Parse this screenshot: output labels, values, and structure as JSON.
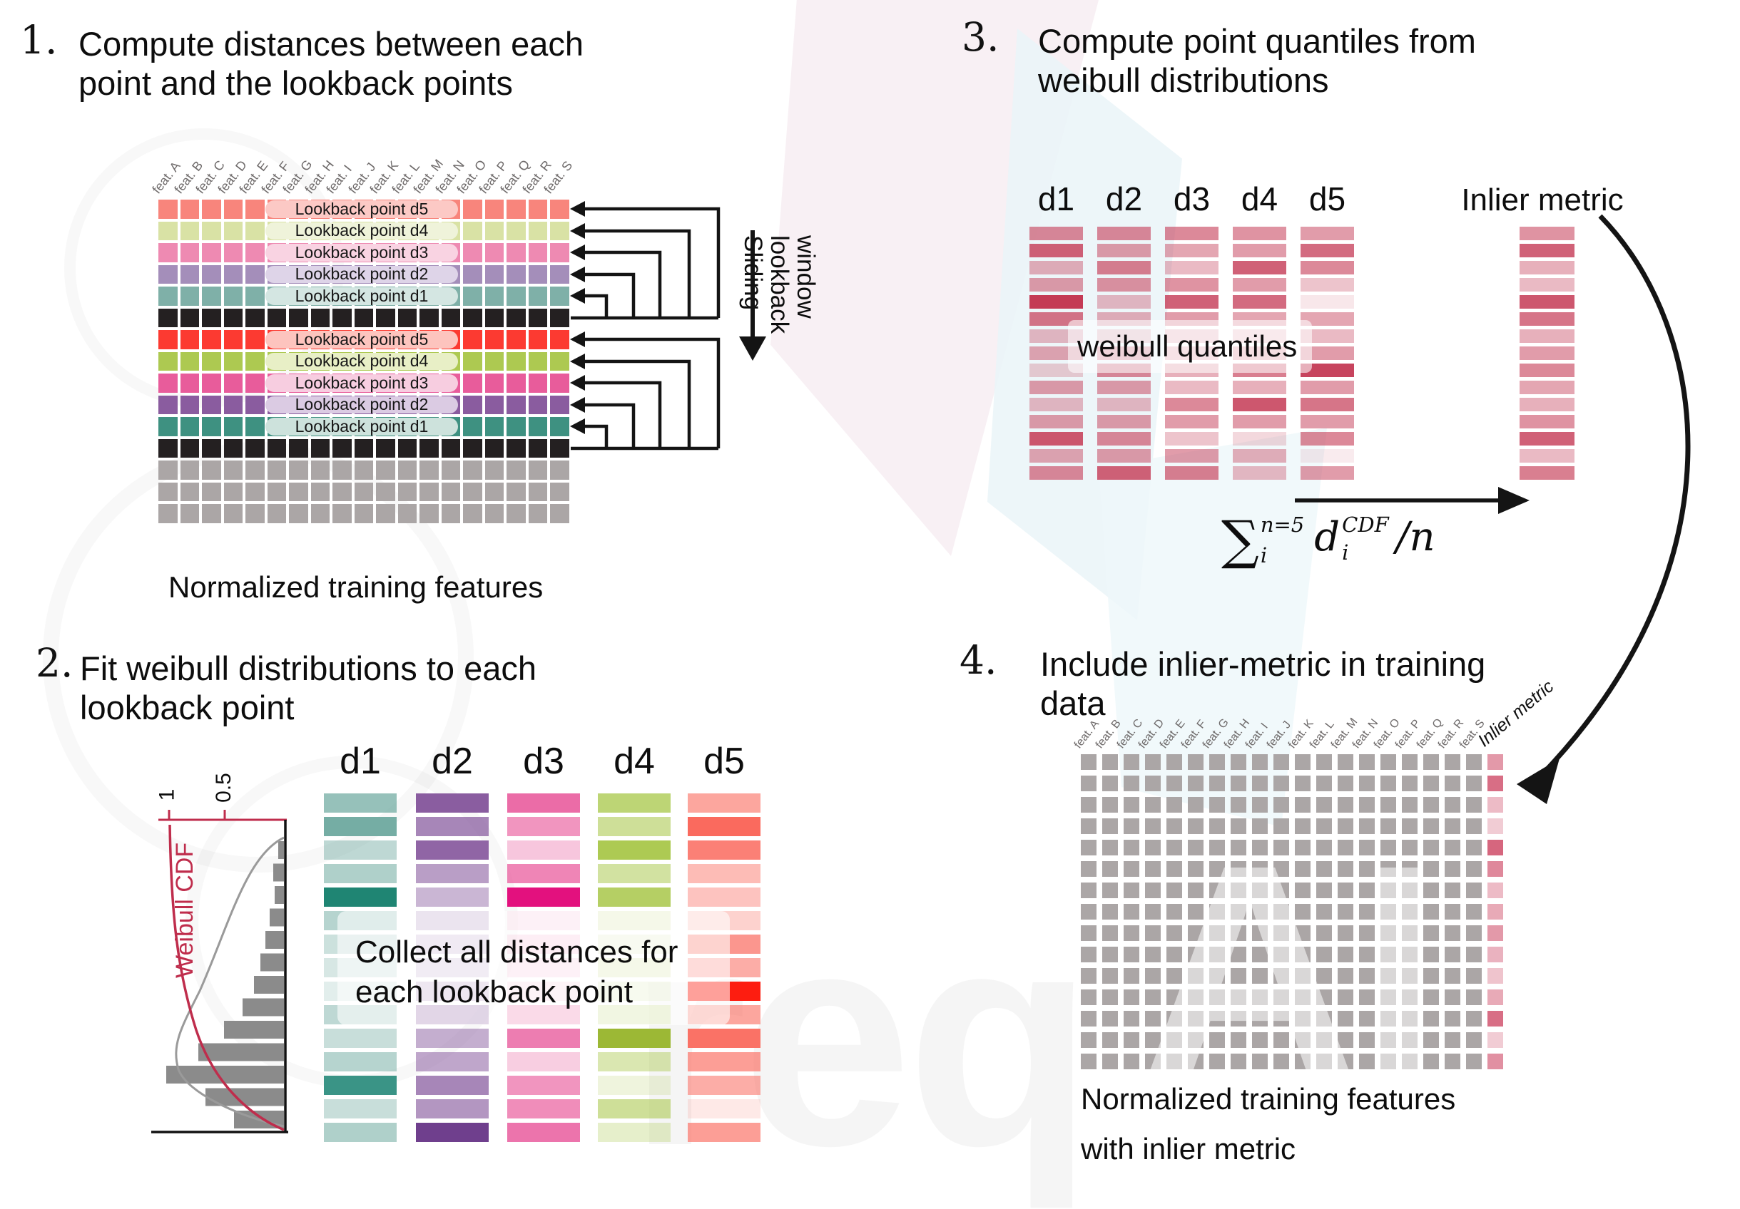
{
  "watermark": {
    "big_text": "req",
    "overlay_text": "AI"
  },
  "p1": {
    "number": "1.",
    "title_lines": [
      "Compute distances between each",
      "point and the lookback points"
    ],
    "caption": "Normalized training features",
    "sliding_lines": [
      "Sliding",
      "lookback",
      "window"
    ],
    "feature_labels": [
      "feat. A",
      "feat. B",
      "feat. C",
      "feat. D",
      "feat. E",
      "feat. F",
      "feat. G",
      "feat. H",
      "feat. I",
      "feat. J",
      "feat. K",
      "feat. L",
      "feat. M",
      "feat. N",
      "feat. O",
      "feat. P",
      "feat. Q",
      "feat. R",
      "feat. S"
    ],
    "rows": [
      {
        "kind": "lookback",
        "label": "Lookback point d5",
        "color": "#f8857c",
        "pill": "#fcc9c5"
      },
      {
        "kind": "lookback",
        "label": "Lookback point d4",
        "color": "#d9e2a5",
        "pill": "#eff3da"
      },
      {
        "kind": "lookback",
        "label": "Lookback point d3",
        "color": "#ee8ab2",
        "pill": "#f9d3e2"
      },
      {
        "kind": "lookback",
        "label": "Lookback point d2",
        "color": "#a48eba",
        "pill": "#ded4e8"
      },
      {
        "kind": "lookback",
        "label": "Lookback point d1",
        "color": "#7fb0a8",
        "pill": "#d4e6e2"
      },
      {
        "kind": "black",
        "color": "#242021"
      },
      {
        "kind": "lookback",
        "label": "Lookback point d5",
        "color": "#fc3a31",
        "pill": "#fdc4be"
      },
      {
        "kind": "lookback",
        "label": "Lookback point d4",
        "color": "#adc951",
        "pill": "#e8efc6"
      },
      {
        "kind": "lookback",
        "label": "Lookback point d3",
        "color": "#e85c9b",
        "pill": "#f7cde0"
      },
      {
        "kind": "lookback",
        "label": "Lookback point d2",
        "color": "#8a5c9f",
        "pill": "#dbcbe3"
      },
      {
        "kind": "lookback",
        "label": "Lookback point d1",
        "color": "#3e9181",
        "pill": "#cde2dc"
      },
      {
        "kind": "black",
        "color": "#242021"
      },
      {
        "kind": "plain",
        "color": "#aba6a6"
      },
      {
        "kind": "plain",
        "color": "#aba6a6"
      },
      {
        "kind": "plain",
        "color": "#aba6a6"
      }
    ]
  },
  "p2": {
    "number": "2.",
    "title_lines": [
      "Fit weibull distributions to each",
      "lookback point"
    ],
    "collect_lines": [
      "Collect all distances for",
      "each lookback point"
    ],
    "cdf": {
      "tick_1": "1",
      "tick_05": "0.5",
      "label": "Weibull CDF",
      "hist": [
        8,
        15,
        13,
        20,
        26,
        33,
        42,
        58,
        84,
        120,
        165,
        110,
        70
      ]
    },
    "columns": [
      {
        "name": "d1",
        "color": "#6ea99f",
        "opacity": [
          0.72,
          0.95,
          0.45,
          0.55,
          1,
          0.5,
          0.35,
          0.28,
          0.2,
          0.45,
          0.38,
          0.5,
          1,
          0.38,
          0.55
        ],
        "overrides": {
          "4": "#1f8573",
          "12": "#3a9486"
        }
      },
      {
        "name": "d2",
        "color": "#8a5da0",
        "opacity": [
          1,
          0.75,
          0.95,
          0.6,
          0.45,
          0.4,
          0.3,
          0.28,
          0.35,
          0.6,
          0.5,
          0.55,
          0.75,
          0.65,
          1
        ],
        "overrides": {
          "14": "#6f3f8d"
        }
      },
      {
        "name": "d3",
        "color": "#e95c9d",
        "opacity": [
          0.9,
          0.65,
          0.35,
          0.75,
          1,
          0.2,
          0.25,
          0.2,
          0.18,
          0.55,
          0.8,
          0.3,
          0.65,
          0.7,
          0.85
        ],
        "overrides": {
          "4": "#e3117e"
        }
      },
      {
        "name": "d4",
        "color": "#adca53",
        "opacity": [
          0.8,
          0.6,
          1,
          0.55,
          0.9,
          0.3,
          0.2,
          0.3,
          0.22,
          0.4,
          1,
          0.45,
          0.2,
          0.6,
          0.3
        ],
        "overrides": {
          "10": "#9cb835"
        }
      },
      {
        "name": "d5",
        "color": "#fa6a5e",
        "opacity": [
          0.6,
          1,
          0.85,
          0.45,
          0.4,
          0.3,
          0.7,
          0.55,
          1,
          0.6,
          0.95,
          0.65,
          0.55,
          0.15,
          0.65
        ],
        "overrides": {
          "8": "#fd1d10"
        }
      }
    ]
  },
  "p3": {
    "number": "3.",
    "title_lines": [
      "Compute point quantiles from",
      "weibull distributions"
    ],
    "quantiles_label": "weibull quantiles",
    "base_color": "#c43a55",
    "headers": [
      "d1",
      "d2",
      "d3",
      "d4",
      "d5"
    ],
    "inlier_header": "Inlier metric",
    "columns": [
      {
        "name": "d1",
        "opacity": [
          0.6,
          0.8,
          0.4,
          0.5,
          1,
          0.7,
          0.35,
          0.45,
          0.25,
          0.5,
          0.35,
          0.5,
          0.85,
          0.45,
          0.6
        ]
      },
      {
        "name": "d2",
        "opacity": [
          0.6,
          0.5,
          0.65,
          0.55,
          0.35,
          0.4,
          0.3,
          0.5,
          0.6,
          0.5,
          0.35,
          0.5,
          0.6,
          0.5,
          0.8
        ]
      },
      {
        "name": "d3",
        "opacity": [
          0.6,
          0.45,
          0.35,
          0.55,
          0.8,
          0.5,
          0.3,
          0.35,
          0.4,
          0.35,
          0.6,
          0.5,
          0.3,
          0.5,
          0.65
        ]
      },
      {
        "name": "d4",
        "opacity": [
          0.55,
          0.5,
          0.8,
          0.5,
          0.75,
          0.45,
          0.25,
          0.4,
          0.65,
          0.4,
          0.85,
          0.5,
          0.2,
          0.4,
          0.35
        ]
      },
      {
        "name": "d5",
        "opacity": [
          0.5,
          0.75,
          0.6,
          0.3,
          0.12,
          0.45,
          0.35,
          0.5,
          0.95,
          0.5,
          0.7,
          0.5,
          0.6,
          0.1,
          0.5
        ]
      }
    ],
    "inlier_opacity": [
      0.55,
      0.8,
      0.4,
      0.35,
      0.85,
      0.7,
      0.4,
      0.5,
      0.6,
      0.45,
      0.4,
      0.55,
      0.8,
      0.35,
      0.65
    ],
    "formula": {
      "sum": "∑",
      "sum_sup": "n=5",
      "sum_sub": "i",
      "d": "d",
      "d_sup": "CDF",
      "d_sub": "i",
      "rest": "/n"
    }
  },
  "p4": {
    "number": "4.",
    "title_lines": [
      "Include inlier-metric in training",
      "data"
    ],
    "caption_lines": [
      "Normalized training features",
      "with inlier metric"
    ],
    "feature_labels": [
      "feat. A",
      "feat. B",
      "feat. C",
      "feat. D",
      "feat. E",
      "feat. F",
      "feat. G",
      "feat. H",
      "feat. I",
      "feat. J",
      "feat. K",
      "feat. L",
      "feat. M",
      "feat. N",
      "feat. O",
      "feat. P",
      "feat. Q",
      "feat. R",
      "feat. S"
    ],
    "inlier_header": "Inlier metric",
    "gray": "#aba6a6",
    "inlier_color": "#d15570",
    "inlier_opacity": [
      0.6,
      0.85,
      0.4,
      0.3,
      0.9,
      0.7,
      0.4,
      0.5,
      0.6,
      0.45,
      0.35,
      0.5,
      0.85,
      0.3,
      0.65
    ]
  }
}
